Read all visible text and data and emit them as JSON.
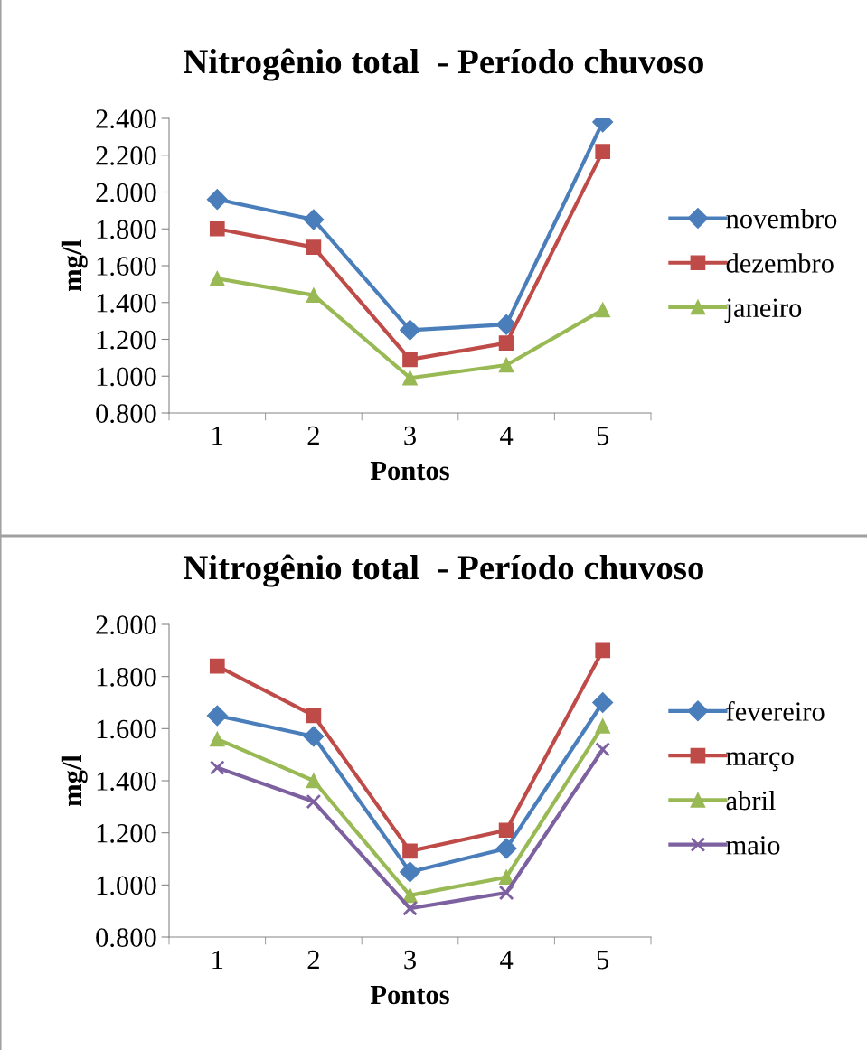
{
  "chart_data": [
    {
      "type": "line",
      "title": "Nitrogênio total  - Período chuvoso",
      "xlabel": "Pontos",
      "ylabel": "mg/l",
      "categories": [
        "1",
        "2",
        "3",
        "4",
        "5"
      ],
      "series": [
        {
          "name": "novembro",
          "color": "#4a7ebb",
          "marker": "diamond",
          "values": [
            1.96,
            1.85,
            1.25,
            1.28,
            2.38
          ]
        },
        {
          "name": "dezembro",
          "color": "#be4b48",
          "marker": "square",
          "values": [
            1.8,
            1.7,
            1.09,
            1.18,
            2.22
          ]
        },
        {
          "name": "janeiro",
          "color": "#98b954",
          "marker": "triangle",
          "values": [
            1.53,
            1.44,
            0.99,
            1.06,
            1.36
          ]
        }
      ],
      "ylim": [
        0.8,
        2.4
      ],
      "yticks": [
        {
          "value": 0.8,
          "label": "0.800"
        },
        {
          "value": 1.0,
          "label": "1.000"
        },
        {
          "value": 1.2,
          "label": "1.200"
        },
        {
          "value": 1.4,
          "label": "1.400"
        },
        {
          "value": 1.6,
          "label": "1.600"
        },
        {
          "value": 1.8,
          "label": "1.800"
        },
        {
          "value": 2.0,
          "label": "2.000"
        },
        {
          "value": 2.2,
          "label": "2.200"
        },
        {
          "value": 2.4,
          "label": "2.400"
        }
      ],
      "grid": false,
      "legend": "right",
      "line_style": "solid"
    },
    {
      "type": "line",
      "title": "Nitrogênio total  - Período chuvoso",
      "xlabel": "Pontos",
      "ylabel": "mg/l",
      "categories": [
        "1",
        "2",
        "3",
        "4",
        "5"
      ],
      "series": [
        {
          "name": "fevereiro",
          "color": "#4a7ebb",
          "marker": "diamond",
          "values": [
            1.65,
            1.57,
            1.05,
            1.14,
            1.7
          ]
        },
        {
          "name": "março",
          "color": "#be4b48",
          "marker": "square",
          "values": [
            1.84,
            1.65,
            1.13,
            1.21,
            1.9
          ]
        },
        {
          "name": "abril",
          "color": "#98b954",
          "marker": "triangle",
          "values": [
            1.56,
            1.4,
            0.96,
            1.03,
            1.61
          ]
        },
        {
          "name": "maio",
          "color": "#7d60a0",
          "marker": "cross",
          "values": [
            1.45,
            1.32,
            0.91,
            0.97,
            1.52
          ]
        }
      ],
      "ylim": [
        0.8,
        2.0
      ],
      "yticks": [
        {
          "value": 0.8,
          "label": "0.800"
        },
        {
          "value": 1.0,
          "label": "1.000"
        },
        {
          "value": 1.2,
          "label": "1.200"
        },
        {
          "value": 1.4,
          "label": "1.400"
        },
        {
          "value": 1.6,
          "label": "1.600"
        },
        {
          "value": 1.8,
          "label": "1.800"
        },
        {
          "value": 2.0,
          "label": "2.000"
        }
      ],
      "grid": false,
      "legend": "right",
      "line_style": "solid"
    }
  ]
}
